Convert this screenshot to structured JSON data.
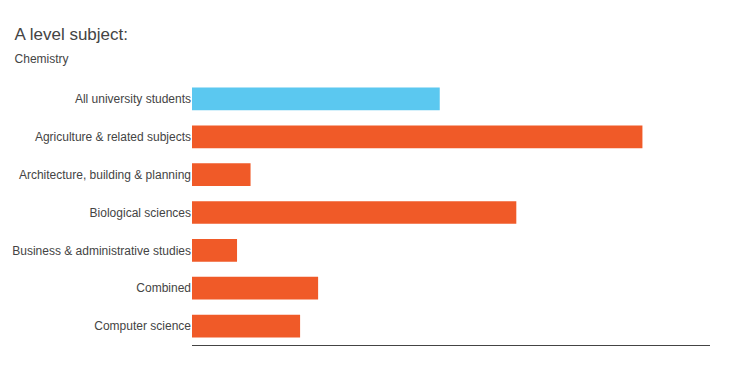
{
  "chart_data": {
    "type": "bar",
    "orientation": "horizontal",
    "title": "A level subject:",
    "subtitle": "Chemistry",
    "categories": [
      "All university students",
      "Agriculture & related subjects",
      "Architecture, building & planning",
      "Biological sciences",
      "Business & administrative studies",
      "Combined",
      "Computer science"
    ],
    "values": [
      55,
      100,
      13,
      72,
      10,
      28,
      24
    ],
    "colors": [
      "#5bc8f0",
      "#f05a28",
      "#f05a28",
      "#f05a28",
      "#f05a28",
      "#f05a28",
      "#f05a28"
    ],
    "xlim": [
      0,
      115
    ],
    "grid": false,
    "tick_labels": "y"
  }
}
